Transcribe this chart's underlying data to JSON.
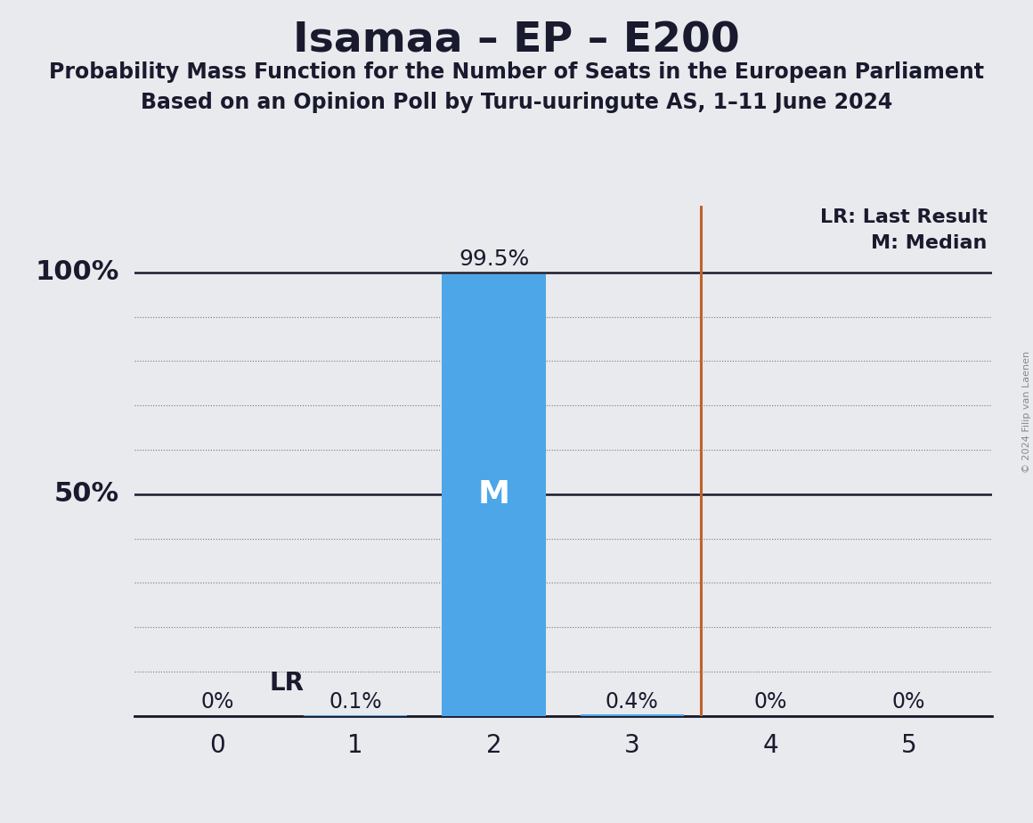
{
  "title": "Isamaa – EP – E200",
  "subtitle1": "Probability Mass Function for the Number of Seats in the European Parliament",
  "subtitle2": "Based on an Opinion Poll by Turu-uuringute AS, 1–11 June 2024",
  "categories": [
    0,
    1,
    2,
    3,
    4,
    5
  ],
  "probabilities": [
    0.0,
    0.001,
    0.995,
    0.004,
    0.0,
    0.0
  ],
  "prob_labels": [
    "0%",
    "0.1%",
    "99.5%",
    "0.4%",
    "0%",
    "0%"
  ],
  "bar_color": "#4da6e8",
  "median": 2,
  "last_result": 3.5,
  "last_result_color": "#c0622a",
  "background_color": "#e8eaed",
  "copyright": "© 2024 Filip van Laenen",
  "legend_lr": "LR: Last Result",
  "legend_m": "M: Median",
  "lr_label": "LR",
  "title_fontsize": 34,
  "subtitle_fontsize": 17,
  "tick_fontsize": 20,
  "prob_label_fontsize": 17,
  "yaxis_label_fontsize": 22,
  "legend_fontsize": 16,
  "median_fontsize": 26,
  "above_bar_fontsize": 18,
  "lr_fontsize": 20
}
